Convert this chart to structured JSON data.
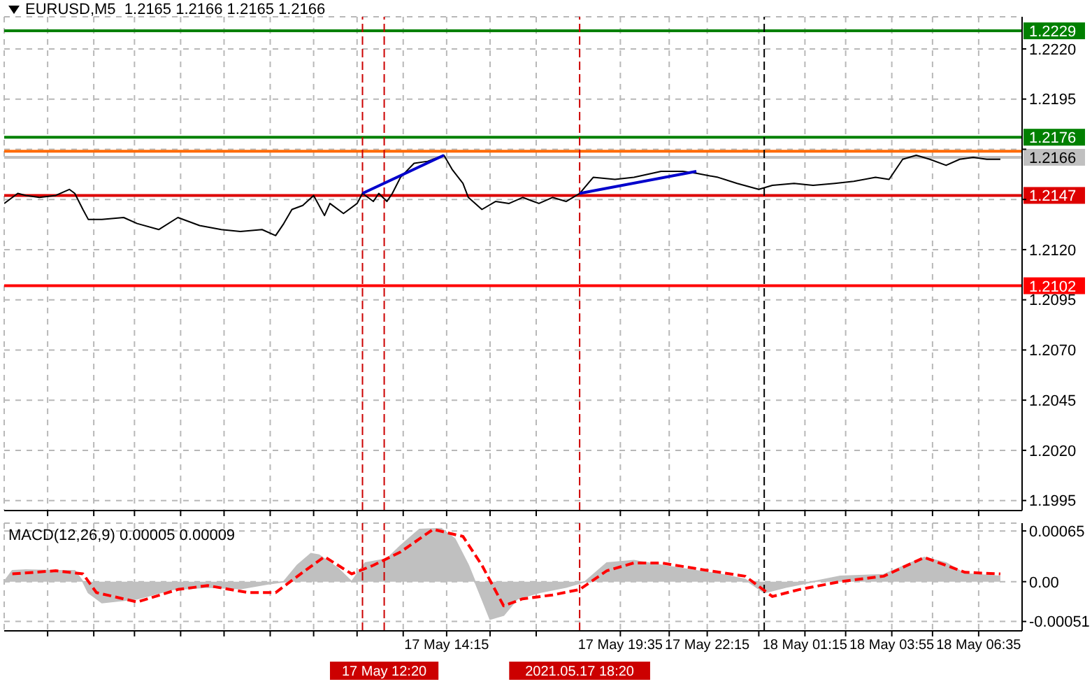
{
  "chart_data": [
    {
      "type": "line",
      "title": "EURUSD,M5  1.2165 1.2166 1.2165 1.2166",
      "grid": true,
      "tick_labels": "y",
      "xlim": [
        "2021-05-17T00:40",
        "2021-05-18T07:55"
      ],
      "xticks": [
        {
          "value": "2021-05-17T02:00",
          "label": null
        },
        {
          "value": "2021-05-17T03:25",
          "label": null
        },
        {
          "value": "2021-05-17T04:40",
          "label": null
        },
        {
          "value": "2021-05-17T06:05",
          "label": null
        },
        {
          "value": "2021-05-17T07:25",
          "label": null
        },
        {
          "value": "2021-05-17T08:50",
          "label": null
        },
        {
          "value": "2021-05-17T10:10",
          "label": null
        },
        {
          "value": "2021-05-17T11:30",
          "label": null
        },
        {
          "value": "2021-05-17T12:55",
          "label": null
        },
        {
          "value": "2021-05-17T14:15",
          "label": null
        },
        {
          "value": "2021-05-17T15:35",
          "label": null
        },
        {
          "value": "2021-05-17T17:00",
          "label": null
        },
        {
          "value": "2021-05-17T19:35",
          "label": null
        },
        {
          "value": "2021-05-17T21:05",
          "label": null
        },
        {
          "value": "2021-05-17T22:15",
          "label": null
        },
        {
          "value": "2021-05-17T23:50",
          "label": null
        },
        {
          "value": "2021-05-18T01:15",
          "label": null
        },
        {
          "value": "2021-05-18T02:30",
          "label": null
        },
        {
          "value": "2021-05-18T03:55",
          "label": null
        },
        {
          "value": "2021-05-18T05:10",
          "label": null
        },
        {
          "value": "2021-05-18T06:35",
          "label": null
        }
      ],
      "ylim": [
        1.199,
        1.2236
      ],
      "yticks": [
        {
          "value": 1.222,
          "label": "1.2220"
        },
        1.2195,
        {
          "value": 1.217,
          "label": null
        },
        {
          "value": 1.2145,
          "label": null
        },
        {
          "value": 1.212,
          "label": "1.2120"
        },
        1.2095,
        {
          "value": 1.207,
          "label": "1.2070"
        },
        1.2045,
        {
          "value": 1.202,
          "label": "1.2020"
        },
        1.1995
      ],
      "ref_lines": [
        {
          "axis": "y",
          "value": 1.2229,
          "label": "1.2229",
          "color": "#008000"
        },
        {
          "axis": "y",
          "value": 1.2176,
          "label": "1.2176",
          "color": "#008000"
        },
        {
          "axis": "y",
          "value": 1.2169,
          "label": null,
          "color": "#ff6a00"
        },
        {
          "axis": "y",
          "value": 1.2166,
          "label": "1.2166",
          "color": "#c0c0c0"
        },
        {
          "axis": "y",
          "value": 1.2147,
          "label": "1.2147",
          "color": "#dd0000"
        },
        {
          "axis": "y",
          "value": 1.2102,
          "label": "1.2102",
          "color": "#ff0000"
        },
        {
          "axis": "x",
          "value": "2021-05-17T11:40",
          "label": null,
          "color": "#cc0000",
          "line_style": "dashed"
        },
        {
          "axis": "x",
          "value": "2021-05-17T12:20",
          "label": null,
          "color": "#cc0000",
          "line_style": "dashed"
        },
        {
          "axis": "x",
          "value": "2021-05-17T18:20",
          "label": null,
          "color": "#cc0000",
          "line_style": "dashed"
        },
        {
          "axis": "x",
          "value": "2021-05-18T00:00",
          "label": null,
          "color": "#000000",
          "line_style": "dashed"
        }
      ],
      "series": [
        {
          "color": "#000000",
          "x": [
            "2021-05-17T00:40",
            "2021-05-17T01:05",
            "2021-05-17T01:20",
            "2021-05-17T01:45",
            "2021-05-17T02:15",
            "2021-05-17T02:40",
            "2021-05-17T02:50",
            "2021-05-17T03:05",
            "2021-05-17T03:15",
            "2021-05-17T03:40",
            "2021-05-17T04:20",
            "2021-05-17T04:45",
            "2021-05-17T05:25",
            "2021-05-17T06:00",
            "2021-05-17T06:40",
            "2021-05-17T07:20",
            "2021-05-17T07:55",
            "2021-05-17T08:35",
            "2021-05-17T09:00",
            "2021-05-17T09:15",
            "2021-05-17T09:30",
            "2021-05-17T09:50",
            "2021-05-17T10:10",
            "2021-05-17T10:30",
            "2021-05-17T10:40",
            "2021-05-17T11:05",
            "2021-05-17T11:30",
            "2021-05-17T11:40",
            "2021-05-17T12:00",
            "2021-05-17T12:10",
            "2021-05-17T12:25",
            "2021-05-17T12:35",
            "2021-05-17T12:50",
            "2021-05-17T13:15",
            "2021-05-17T13:40",
            "2021-05-17T14:10",
            "2021-05-17T14:25",
            "2021-05-17T14:45",
            "2021-05-17T14:55",
            "2021-05-17T15:20",
            "2021-05-17T15:45",
            "2021-05-17T16:10",
            "2021-05-17T16:35",
            "2021-05-17T17:05",
            "2021-05-17T17:30",
            "2021-05-17T17:55",
            "2021-05-17T18:20",
            "2021-05-17T18:45",
            "2021-05-17T19:25",
            "2021-05-17T20:00",
            "2021-05-17T20:50",
            "2021-05-17T21:30",
            "2021-05-17T21:55",
            "2021-05-17T22:35",
            "2021-05-17T23:10",
            "2021-05-17T23:50",
            "2021-05-18T00:15",
            "2021-05-18T00:55",
            "2021-05-18T01:30",
            "2021-05-18T02:10",
            "2021-05-18T02:45",
            "2021-05-18T03:25",
            "2021-05-18T03:50",
            "2021-05-18T04:15",
            "2021-05-18T04:40",
            "2021-05-18T05:05",
            "2021-05-18T05:35",
            "2021-05-18T06:00",
            "2021-05-18T06:25",
            "2021-05-18T06:50",
            "2021-05-18T07:15"
          ],
          "values": [
            1.2143,
            1.2148,
            1.2147,
            1.2146,
            1.2147,
            1.215,
            1.2148,
            1.214,
            1.2135,
            1.2135,
            1.2136,
            1.2133,
            1.213,
            1.2136,
            1.2132,
            1.213,
            1.2129,
            1.213,
            1.2127,
            1.2133,
            1.214,
            1.2142,
            1.2147,
            1.2137,
            1.2143,
            1.2138,
            1.2143,
            1.2148,
            1.2144,
            1.2148,
            1.2144,
            1.2148,
            1.2156,
            1.2163,
            1.2164,
            1.2167,
            1.216,
            1.2153,
            1.2146,
            1.214,
            1.2144,
            1.2143,
            1.2146,
            1.2143,
            1.2146,
            1.2144,
            1.2148,
            1.2156,
            1.2155,
            1.2156,
            1.2159,
            1.2159,
            1.2158,
            1.2156,
            1.2153,
            1.215,
            1.2152,
            1.2153,
            1.2152,
            1.2153,
            1.2154,
            1.2156,
            1.2155,
            1.2165,
            1.2167,
            1.2165,
            1.2162,
            1.2165,
            1.2166,
            1.2165,
            1.2165
          ]
        },
        {
          "color": "#0000cc",
          "x": [
            "2021-05-17T11:40",
            "2021-05-17T14:10"
          ],
          "values": [
            1.2148,
            1.2167
          ]
        },
        {
          "color": "#0000cc",
          "x": [
            "2021-05-17T18:20",
            "2021-05-17T21:55"
          ],
          "values": [
            1.2148,
            1.2159
          ]
        }
      ]
    },
    {
      "type": "area",
      "title": "MACD(12,26,9) 0.00005 0.00009",
      "grid": true,
      "xlim": [
        "2021-05-17T00:40",
        "2021-05-18T07:55"
      ],
      "xticks": [
        {
          "value": "2021-05-17T02:00",
          "label": null
        },
        {
          "value": "2021-05-17T03:25",
          "label": null
        },
        {
          "value": "2021-05-17T04:40",
          "label": null
        },
        {
          "value": "2021-05-17T06:05",
          "label": null
        },
        {
          "value": "2021-05-17T07:25",
          "label": null
        },
        {
          "value": "2021-05-17T08:50",
          "label": null
        },
        {
          "value": "2021-05-17T10:10",
          "label": null
        },
        {
          "value": "2021-05-17T11:30",
          "label": null
        },
        {
          "value": "2021-05-17T12:55",
          "label": null
        },
        {
          "value": "2021-05-17T14:15",
          "label": "17 May 14:15"
        },
        {
          "value": "2021-05-17T15:35",
          "label": null
        },
        {
          "value": "2021-05-17T17:00",
          "label": null
        },
        {
          "value": "2021-05-17T19:35",
          "label": "17 May 19:35"
        },
        {
          "value": "2021-05-17T21:05",
          "label": null
        },
        {
          "value": "2021-05-17T22:15",
          "label": "17 May 22:15"
        },
        {
          "value": "2021-05-17T23:50",
          "label": null
        },
        {
          "value": "2021-05-18T01:15",
          "label": "18 May 01:15"
        },
        {
          "value": "2021-05-18T02:30",
          "label": null
        },
        {
          "value": "2021-05-18T03:55",
          "label": "18 May 03:55"
        },
        {
          "value": "2021-05-18T05:10",
          "label": null
        },
        {
          "value": "2021-05-18T06:35",
          "label": "18 May 06:35"
        }
      ],
      "ylim": [
        -0.00063,
        0.00075
      ],
      "yticks": [
        {
          "value": 0.00065,
          "label": "0.00065"
        },
        {
          "value": 0,
          "label": "0.00"
        },
        {
          "value": -0.00051,
          "label": "-0.00051"
        }
      ],
      "ref_lines": [
        {
          "axis": "x",
          "value": "2021-05-17T11:40",
          "label": null,
          "color": "#cc0000",
          "line_style": "dashed"
        },
        {
          "axis": "x",
          "value": "2021-05-17T12:20",
          "label": "17 May 12:20",
          "color": "#cc0000",
          "line_style": "dashed"
        },
        {
          "axis": "x",
          "value": "2021-05-17T18:20",
          "label": "2021.05.17 18:20",
          "color": "#cc0000",
          "line_style": "dashed"
        },
        {
          "axis": "x",
          "value": "2021-05-18T00:00",
          "label": null,
          "color": "#000000",
          "line_style": "dashed"
        }
      ],
      "series": [
        {
          "color": "#c0c0c0",
          "x": [
            "2021-05-17T00:40",
            "2021-05-17T00:55",
            "2021-05-17T01:20",
            "2021-05-17T02:15",
            "2021-05-17T02:50",
            "2021-05-17T03:05",
            "2021-05-17T03:15",
            "2021-05-17T03:40",
            "2021-05-17T04:45",
            "2021-05-17T05:50",
            "2021-05-17T06:55",
            "2021-05-17T07:55",
            "2021-05-17T08:45",
            "2021-05-17T09:15",
            "2021-05-17T09:40",
            "2021-05-17T10:05",
            "2021-05-17T10:20",
            "2021-05-17T10:55",
            "2021-05-17T11:20",
            "2021-05-17T11:45",
            "2021-05-17T12:25",
            "2021-05-17T12:50",
            "2021-05-17T13:25",
            "2021-05-17T14:05",
            "2021-05-17T14:30",
            "2021-05-17T14:55",
            "2021-05-17T15:20",
            "2021-05-17T15:35",
            "2021-05-17T16:00",
            "2021-05-17T16:25",
            "2021-05-17T17:05",
            "2021-05-17T17:55",
            "2021-05-17T18:30",
            "2021-05-17T19:10",
            "2021-05-17T20:00",
            "2021-05-17T20:50",
            "2021-05-17T21:45",
            "2021-05-17T22:35",
            "2021-05-17T23:25",
            "2021-05-18T00:00",
            "2021-05-18T00:40",
            "2021-05-18T01:30",
            "2021-05-18T02:20",
            "2021-05-18T03:40",
            "2021-05-18T04:30",
            "2021-05-18T04:55",
            "2021-05-18T05:35",
            "2021-05-18T06:10",
            "2021-05-18T07:15"
          ],
          "values": [
            0,
            0.00014,
            0.00015,
            0.00014,
            0.00014,
            0,
            -0.00014,
            -0.00027,
            -0.00022,
            -0.0001,
            -7e-05,
            -9e-05,
            -3e-05,
            0,
            0.00021,
            0.00036,
            0.00034,
            0.00017,
            0,
            0.00024,
            0.00029,
            0.00046,
            0.00067,
            0.00068,
            0.00055,
            0.00021,
            -0.00022,
            -0.00048,
            -0.00043,
            -0.00022,
            -0.00014,
            -7e-05,
            0,
            0.00024,
            0.00027,
            0.00021,
            0.00015,
            0.0001,
            3e-05,
            -0.00014,
            -7e-05,
            0,
            7e-05,
            9e-05,
            0.00024,
            0.00031,
            0.00024,
            0.0001,
            7e-05
          ]
        },
        {
          "type": "line",
          "color": "#ff0000",
          "line_style": "dashed",
          "x": [
            "2021-05-17T00:55",
            "2021-05-17T02:15",
            "2021-05-17T03:05",
            "2021-05-17T03:30",
            "2021-05-17T04:45",
            "2021-05-17T06:00",
            "2021-05-17T06:55",
            "2021-05-17T08:10",
            "2021-05-17T09:00",
            "2021-05-17T09:50",
            "2021-05-17T10:30",
            "2021-05-17T11:20",
            "2021-05-17T12:00",
            "2021-05-17T12:50",
            "2021-05-17T13:50",
            "2021-05-17T14:45",
            "2021-05-17T15:20",
            "2021-05-17T16:00",
            "2021-05-17T16:35",
            "2021-05-17T17:30",
            "2021-05-17T18:20",
            "2021-05-17T19:10",
            "2021-05-17T20:00",
            "2021-05-17T20:50",
            "2021-05-17T22:10",
            "2021-05-17T23:25",
            "2021-05-18T00:15",
            "2021-05-18T01:05",
            "2021-05-18T02:20",
            "2021-05-18T03:40",
            "2021-05-18T04:55",
            "2021-05-18T06:10",
            "2021-05-18T07:15"
          ],
          "values": [
            0.0001,
            0.00014,
            0.0001,
            -0.00014,
            -0.00026,
            -0.0001,
            -5e-05,
            -0.00014,
            -0.00014,
            0.00012,
            0.00032,
            0.0001,
            0.00021,
            0.00038,
            0.00067,
            0.00058,
            0.00021,
            -0.00031,
            -0.00022,
            -0.00017,
            -0.0001,
            0.00014,
            0.00024,
            0.00024,
            0.00015,
            7e-05,
            -0.00019,
            -0.0001,
            0,
            7e-05,
            0.00031,
            0.00012,
            0.0001
          ]
        }
      ]
    }
  ]
}
